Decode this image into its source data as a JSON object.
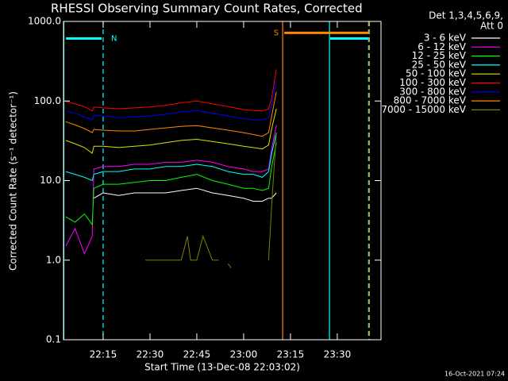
{
  "chart_data": {
    "type": "line",
    "title": "RHESSI Observing Summary Count Rates, Corrected",
    "x_label": "Start Time (13-Dec-08 22:03:02)",
    "y_label": "Corrected Count Rate (s⁻¹ detector⁻¹)",
    "timestamp": "16-Oct-2021 07:24",
    "legend_header": [
      "Det 1,3,4,5,6,9,",
      "Att 0"
    ],
    "legend_position": "upper right",
    "log_y": true,
    "xlim": [
      2.3,
      104
    ],
    "ylim": [
      0.1,
      1000
    ],
    "xticks": [
      {
        "value": 15,
        "label": "22:15"
      },
      {
        "value": 30,
        "label": "22:30"
      },
      {
        "value": 45,
        "label": "22:45"
      },
      {
        "value": 60,
        "label": "23:00"
      },
      {
        "value": 75,
        "label": "23:15"
      },
      {
        "value": 90,
        "label": "23:30"
      }
    ],
    "yticks": [
      {
        "value": 0.1,
        "label": "0.1"
      },
      {
        "value": 1,
        "label": "1.0"
      },
      {
        "value": 10,
        "label": "10.0"
      },
      {
        "value": 100,
        "label": "100.0"
      },
      {
        "value": 1000,
        "label": "1000.0"
      }
    ],
    "x": [
      3,
      6,
      9,
      11.5,
      12,
      15,
      20,
      25,
      30,
      35,
      40,
      45,
      50,
      55,
      60,
      63,
      66,
      68,
      69,
      70.5
    ],
    "series": [
      {
        "name": "3 - 6 keV",
        "color": "#ffffff",
        "values": [
          null,
          null,
          null,
          null,
          6,
          7,
          6.5,
          7,
          7,
          7,
          7.5,
          8,
          7,
          6.5,
          6,
          5.5,
          5.5,
          6,
          6,
          7
        ]
      },
      {
        "name": "6 - 12 keV",
        "color": "#ff00ff",
        "values": [
          1.5,
          2.5,
          1.2,
          2,
          14,
          15,
          15,
          16,
          16,
          17,
          17,
          18,
          17,
          15,
          14,
          13,
          13,
          14,
          25,
          50
        ]
      },
      {
        "name": "12 - 25 keV",
        "color": "#00ff00",
        "values": [
          3.5,
          3,
          3.8,
          2.8,
          8,
          9,
          9,
          9.5,
          10,
          10,
          11,
          12,
          10,
          9,
          8,
          8,
          7.5,
          8,
          15,
          30
        ]
      },
      {
        "name": "25 - 50 keV",
        "color": "#00ffff",
        "values": [
          13,
          12,
          11,
          10,
          12,
          13,
          13,
          14,
          14,
          15,
          15,
          16,
          15,
          13,
          12,
          12,
          11,
          13,
          22,
          40
        ]
      },
      {
        "name": "50 - 100 keV",
        "color": "#e0e000",
        "values": [
          32,
          29,
          26,
          22,
          27,
          27,
          26,
          27,
          28,
          30,
          32,
          33,
          31,
          29,
          27,
          26,
          25,
          28,
          45,
          80
        ]
      },
      {
        "name": "100 - 300 keV",
        "color": "#ff0000",
        "values": [
          98,
          92,
          85,
          75,
          84,
          82,
          80,
          82,
          84,
          88,
          95,
          100,
          92,
          85,
          78,
          76,
          75,
          80,
          110,
          250
        ]
      },
      {
        "name": "300 - 800 keV",
        "color": "#0000ff",
        "values": [
          75,
          70,
          63,
          58,
          66,
          65,
          62,
          63,
          65,
          68,
          73,
          76,
          70,
          65,
          60,
          58,
          58,
          62,
          90,
          180
        ]
      },
      {
        "name": "800 - 7000 keV",
        "color": "#ff8800",
        "values": [
          55,
          50,
          45,
          40,
          44,
          43,
          42,
          42,
          44,
          46,
          48,
          49,
          46,
          43,
          40,
          38,
          36,
          40,
          65,
          130
        ]
      },
      {
        "name": "7000 - 15000 keV",
        "color": "#808000",
        "x": [
          28.5,
          35,
          40,
          42,
          43,
          45,
          47,
          50,
          52,
          53,
          55,
          56,
          60,
          62,
          63,
          65,
          66,
          68,
          69,
          70.5
        ],
        "values": [
          1,
          1,
          1,
          2,
          1,
          1,
          2,
          1,
          1,
          null,
          0.9,
          0.8,
          null,
          null,
          null,
          null,
          null,
          1,
          5,
          40
        ]
      }
    ],
    "vlines": [
      {
        "x": 2.4,
        "color": "#00ffff",
        "dashed": false
      },
      {
        "x": 15,
        "color": "#00ffff",
        "dashed": true
      },
      {
        "x": 72.5,
        "color": "#ff8800",
        "dashed": false
      },
      {
        "x": 87.5,
        "color": "#00ffff",
        "dashed": false
      },
      {
        "x": 100,
        "color": "#00ffff",
        "dashed": true
      },
      {
        "x": 100.3,
        "color": "#ff8800",
        "dashed": true
      }
    ],
    "intervals": [
      {
        "label": "N",
        "color": "#00ffff",
        "x": [
          3.1,
          14.5
        ],
        "level": 611
      },
      {
        "label": "S",
        "color": "#ff8800",
        "x": [
          73,
          100
        ],
        "level": 718
      },
      {
        "color": "#00ffff",
        "x": [
          87.7,
          100
        ],
        "level": 611
      }
    ]
  }
}
